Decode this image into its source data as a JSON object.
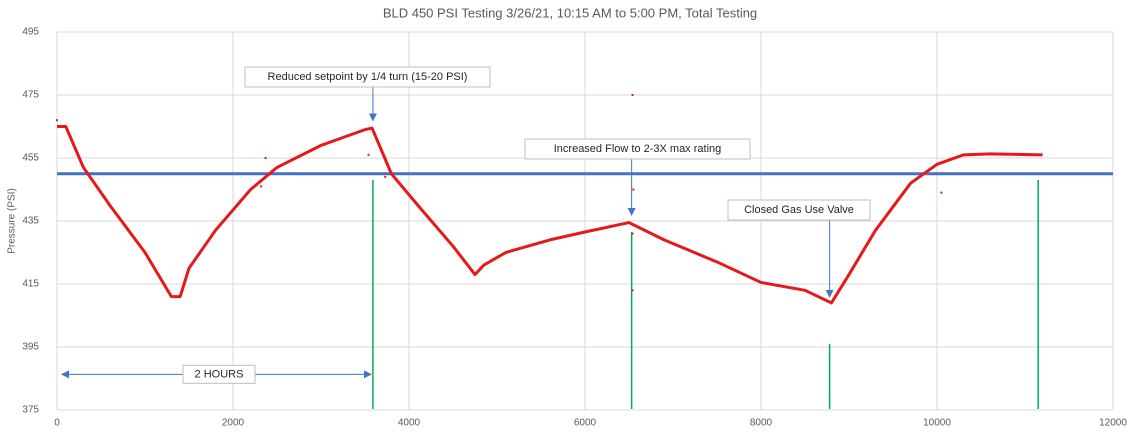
{
  "chart_data": {
    "type": "line",
    "title": "BLD 450 PSI Testing 3/26/21, 10:15 AM to 5:00 PM, Total Testing",
    "y_label": "Pressure (PSI)",
    "xlim": [
      0,
      12000
    ],
    "xticks": [
      0,
      2000,
      4000,
      6000,
      8000,
      10000,
      12000
    ],
    "ylim": [
      375,
      495
    ],
    "yticks": [
      375,
      395,
      415,
      435,
      455,
      475,
      495
    ],
    "grid": true,
    "series": [
      {
        "color": "#e41a1a",
        "x": [
          0,
          100,
          300,
          600,
          1000,
          1300,
          1400,
          1500,
          1800,
          2200,
          2500,
          3000,
          3500,
          3580,
          3800,
          4100,
          4500,
          4750,
          4850,
          5100,
          5600,
          6000,
          6500,
          6900,
          7500,
          8000,
          8500,
          8800,
          9000,
          9300,
          9700,
          10000,
          10300,
          10600,
          11200
        ],
        "values": [
          465,
          465,
          452,
          440,
          425,
          411,
          411,
          420,
          432,
          445,
          452,
          459,
          464,
          464.5,
          450,
          440,
          427,
          418,
          421,
          425,
          429,
          431.5,
          434.5,
          429,
          422,
          415.5,
          413,
          409,
          418,
          432,
          447,
          453,
          456,
          456.3,
          456
        ]
      }
    ],
    "outliers": {
      "color": "#e41a1a",
      "x": [
        0,
        2370,
        2320,
        3540,
        3730,
        6540,
        6550,
        6540,
        6540,
        10050
      ],
      "values": [
        467,
        455,
        446,
        456,
        449,
        475,
        445,
        431,
        413,
        444
      ]
    },
    "reference_line": {
      "value": 450,
      "color": "#4472c4"
    },
    "markers": {
      "color": "#00b050",
      "x": [
        3590,
        6530,
        8780,
        11150
      ],
      "tops": [
        448,
        431.5,
        396,
        448
      ]
    },
    "annotations": [
      {
        "text": "Reduced setpoint by 1/4 turn (15-20 PSI)",
        "x": 3590,
        "y": 465
      },
      {
        "text": "Increased Flow to 2-3X max rating",
        "x": 6530,
        "y": 435
      },
      {
        "text": "Closed Gas Use Valve",
        "x": 8780,
        "y": 409
      }
    ],
    "span_annotation": {
      "text": "2 HOURS",
      "x": [
        0,
        3590
      ],
      "y": 386
    }
  }
}
